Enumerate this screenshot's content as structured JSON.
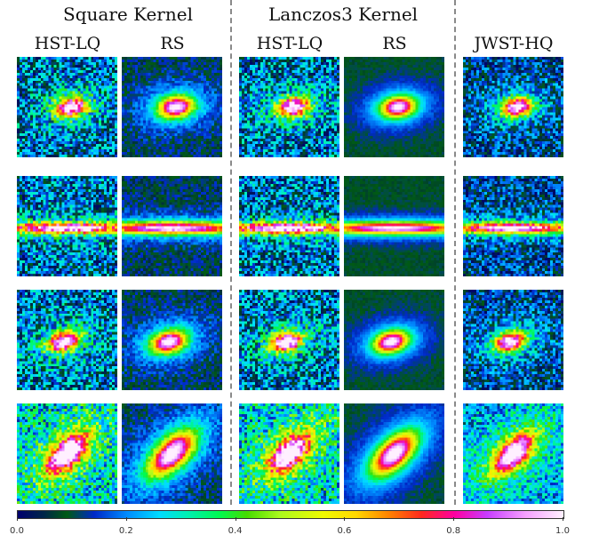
{
  "figure": {
    "groups": [
      {
        "title": "Square Kernel",
        "columns": [
          "HST-LQ",
          "RS"
        ]
      },
      {
        "title": "Lanczos3 Kernel",
        "columns": [
          "HST-LQ",
          "RS"
        ]
      },
      {
        "title": "",
        "columns": [
          "JWST-HQ"
        ]
      }
    ],
    "colorbar": {
      "colormap": "gist_ncar",
      "ticks": [
        "0.0",
        "0.2",
        "0.4",
        "0.6",
        "0.8",
        "1.0"
      ]
    },
    "panel_types": [
      "noisy-bg",
      "smooth-rs",
      "noisy-bg",
      "smooth-rs-lanczos",
      "medium-noise"
    ],
    "galaxy_rows": [
      {
        "name": "compact-galaxy"
      },
      {
        "name": "edge-on-galaxy"
      },
      {
        "name": "small-elliptical-galaxy"
      },
      {
        "name": "bright-diffuse-galaxy"
      }
    ]
  }
}
